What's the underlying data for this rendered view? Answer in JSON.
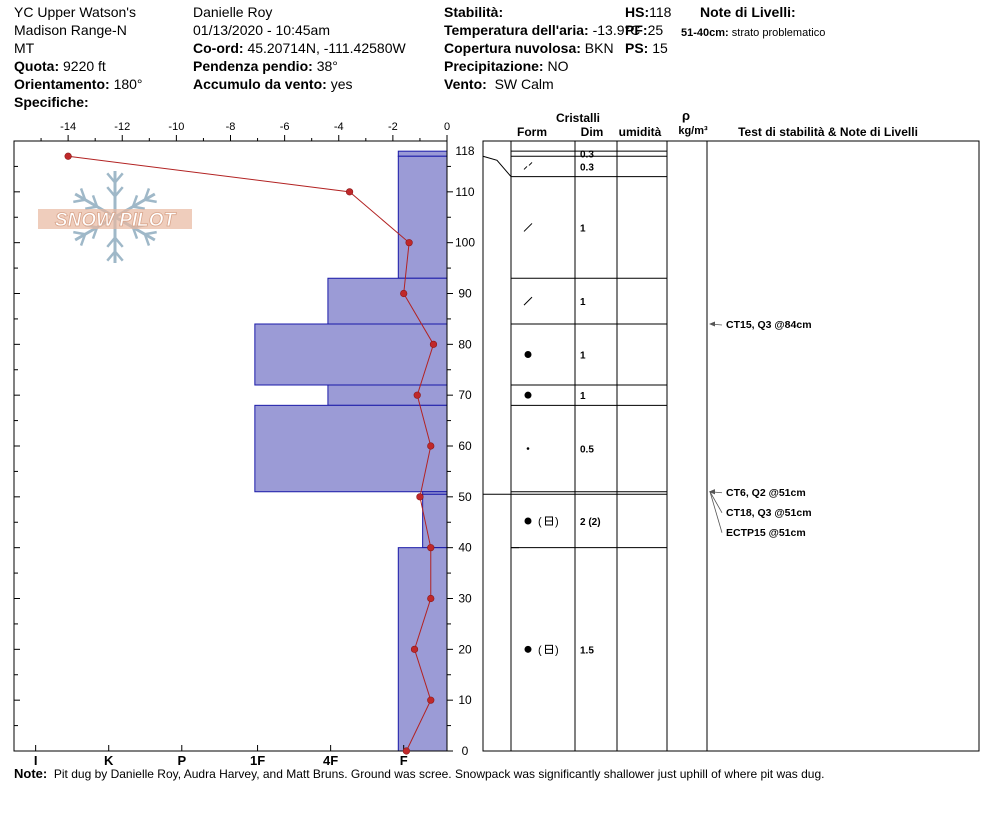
{
  "header": {
    "location": "YC Upper Watson's",
    "range": "Madison Range-N",
    "state": "MT",
    "elevation_label": "Quota:",
    "elevation": "9220 ft",
    "aspect_label": "Orientamento:",
    "aspect": "180°",
    "specifics_label": "Specifiche:",
    "observer": "Danielle Roy",
    "datetime": "01/13/2020 - 10:45am",
    "coord_label": "Co-ord:",
    "coord": "45.20714N, -111.42580W",
    "slope_label": "Pendenza pendio:",
    "slope": "38°",
    "wind_load_label": "Accumulo da vento:",
    "wind_load": "yes",
    "stability_label": "Stabilità:",
    "air_temp_label": "Temperatura dell'aria:",
    "air_temp": "-13.9°C",
    "cloud_label": "Copertura nuvolosa:",
    "cloud": "BKN",
    "precip_label": "Precipitazione:",
    "precip": "NO",
    "wind_label": "Vento:",
    "wind": "SW Calm",
    "hs_label": "HS:",
    "hs": "118",
    "pf_label": "PF:",
    "pf": "25",
    "ps_label": "PS:",
    "ps": "15",
    "layer_notes_label": "Note di Livelli:",
    "layer_note_range": "51-40cm:",
    "layer_note_text": "strato problematico"
  },
  "table_headers": {
    "crystals": "Cristalli",
    "form": "Form",
    "size": "Dim",
    "moisture": "umidità",
    "rho": "ρ",
    "density_unit": "kg/m³",
    "stability_notes": "Test di stabilità & Note di Livelli"
  },
  "watermark": "SNOW PILOT",
  "note_label": "Note:",
  "note_text": "Pit dug by Danielle Roy, Audra Harvey, and Matt Bruns.  Ground was scree.  Snowpack was significantly shallower just uphill of where pit was dug.",
  "chart_data": {
    "type": "bar",
    "temperature_axis": {
      "range": [
        -16,
        0
      ],
      "ticks": [
        -14,
        -12,
        -10,
        -8,
        -6,
        -4,
        -2,
        0
      ],
      "tick_labels": [
        "-14",
        "-12",
        "-10",
        "-8",
        "-6",
        "-4",
        "-2",
        "0"
      ]
    },
    "depth_axis": {
      "range": [
        0,
        120
      ],
      "ticks": [
        0,
        10,
        20,
        30,
        40,
        50,
        60,
        70,
        80,
        90,
        100,
        110,
        118
      ],
      "tick_labels": [
        "0",
        "10",
        "20",
        "30",
        "40",
        "50",
        "60",
        "70",
        "80",
        "90",
        "100",
        "110",
        "118"
      ]
    },
    "hardness_axis": {
      "labels": [
        "I",
        "K",
        "P",
        "1F",
        "4F",
        "F"
      ],
      "label_values": [
        -15.2,
        -12.5,
        -9.8,
        -7.0,
        -4.3,
        -1.6
      ]
    },
    "hardness_profile": [
      {
        "top": 118,
        "bottom": 117,
        "value": -1.8
      },
      {
        "top": 117,
        "bottom": 93,
        "value": -1.8
      },
      {
        "top": 93,
        "bottom": 84,
        "value": -4.4
      },
      {
        "top": 84,
        "bottom": 72,
        "value": -7.1
      },
      {
        "top": 72,
        "bottom": 68,
        "value": -4.4
      },
      {
        "top": 68,
        "bottom": 51,
        "value": -7.1
      },
      {
        "top": 51,
        "bottom": 50.5,
        "value": -0.9
      },
      {
        "top": 50.5,
        "bottom": 40,
        "value": -0.9
      },
      {
        "top": 40,
        "bottom": 0,
        "value": -1.8
      }
    ],
    "temperature_profile": [
      {
        "depth": 117,
        "temp": -14
      },
      {
        "depth": 110,
        "temp": -3.6
      },
      {
        "depth": 100,
        "temp": -1.4
      },
      {
        "depth": 90,
        "temp": -1.6
      },
      {
        "depth": 80,
        "temp": -0.5
      },
      {
        "depth": 70,
        "temp": -1.1
      },
      {
        "depth": 60,
        "temp": -0.6
      },
      {
        "depth": 50,
        "temp": -1.0
      },
      {
        "depth": 40,
        "temp": -0.6
      },
      {
        "depth": 30,
        "temp": -0.6
      },
      {
        "depth": 20,
        "temp": -1.2
      },
      {
        "depth": 10,
        "temp": -0.6
      },
      {
        "depth": 0,
        "temp": -1.5
      }
    ],
    "layers": [
      {
        "top": 118,
        "bottom": 117,
        "form": "",
        "size": "0.3"
      },
      {
        "top": 117,
        "bottom": 113,
        "form": "fragment",
        "size": "0.3"
      },
      {
        "top": 113,
        "bottom": 93,
        "form": "slash",
        "size": "1"
      },
      {
        "top": 93,
        "bottom": 84,
        "form": "slash",
        "size": "1"
      },
      {
        "top": 84,
        "bottom": 72,
        "form": "dot",
        "size": "1"
      },
      {
        "top": 72,
        "bottom": 68,
        "form": "dot",
        "size": "1"
      },
      {
        "top": 68,
        "bottom": 51,
        "form": "smalldot",
        "size": "0.5"
      },
      {
        "top": 50.5,
        "bottom": 40,
        "form": "dot-faceted",
        "size": "2 (2)"
      },
      {
        "top": 40,
        "bottom": 0,
        "form": "dot-faceted",
        "size": "1.5"
      }
    ],
    "stability_tests": [
      {
        "depth": 84,
        "label": "CT15, Q3 @84cm"
      },
      {
        "depth": 51,
        "label": "CT6, Q2 @51cm"
      },
      {
        "depth": 51,
        "label": "CT18, Q3 @51cm"
      },
      {
        "depth": 51,
        "label": "ECTP15 @51cm"
      }
    ]
  }
}
